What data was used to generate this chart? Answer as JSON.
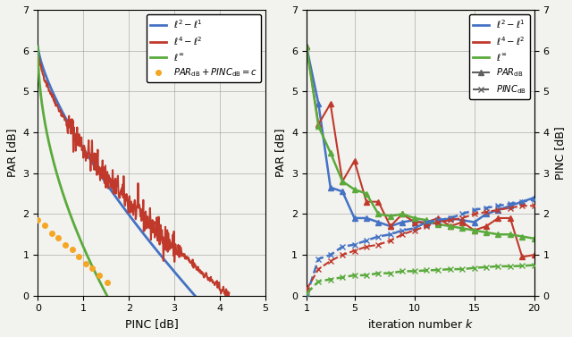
{
  "left_xlim": [
    0,
    5
  ],
  "left_ylim": [
    0,
    7
  ],
  "right_xlim": [
    1,
    20
  ],
  "right_ylim": [
    0,
    7
  ],
  "left_xlabel": "PINC [dB]",
  "left_ylabel": "PAR [dB]",
  "right_xlabel": "iteration number $k$",
  "right_ylabel_left": "PAR [dB]",
  "right_ylabel_right": "PINC [dB]",
  "color_blue": "#4472c4",
  "color_red": "#c0392b",
  "color_green": "#5aaa3c",
  "color_orange": "#f5a623",
  "color_gray": "#606060",
  "background": "#f2f2ee",
  "left_xticks": [
    0,
    1,
    2,
    3,
    4,
    5
  ],
  "left_yticks": [
    0,
    1,
    2,
    3,
    4,
    5,
    6,
    7
  ],
  "right_xticks": [
    1,
    5,
    10,
    15,
    20
  ],
  "right_yticks": [
    0,
    1,
    2,
    3,
    4,
    5,
    6,
    7
  ]
}
